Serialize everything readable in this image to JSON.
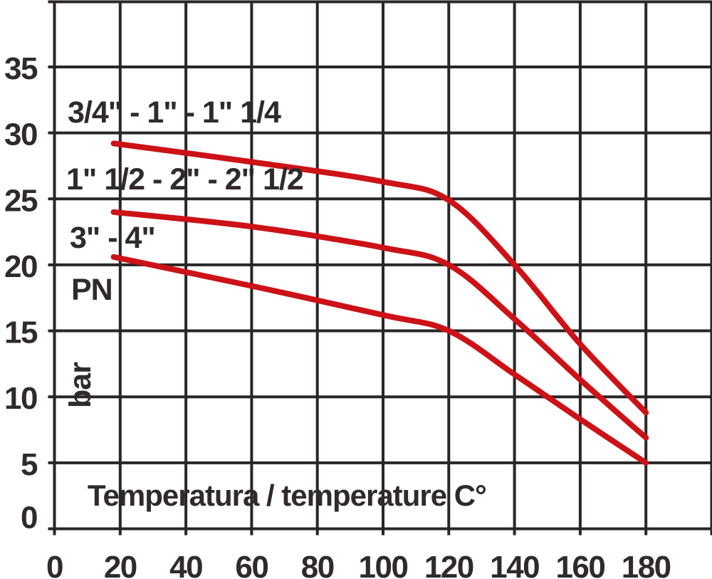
{
  "page": {
    "background": "#ffffff"
  },
  "chart_data": {
    "type": "line",
    "title": "",
    "xlabel": "Temperatura / temperature C°",
    "ylabel": "PN",
    "ylabel_unit": "bar",
    "xlim": [
      0,
      200
    ],
    "ylim": [
      0,
      40
    ],
    "x_ticks": [
      0,
      20,
      40,
      60,
      80,
      100,
      120,
      140,
      160,
      180
    ],
    "y_ticks": [
      0,
      5,
      10,
      15,
      20,
      25,
      30,
      35
    ],
    "grid": true,
    "legend_position": "labels-inside-plot",
    "colors": {
      "curve": "#cc1217",
      "grid": "#2a2526",
      "text": "#302a2b",
      "background": "#ffffff"
    },
    "series": [
      {
        "name": "3/4\" - 1\" - 1\" 1/4",
        "points": [
          [
            18,
            29.2
          ],
          [
            60,
            27.8
          ],
          [
            100,
            26.3
          ],
          [
            120,
            24.9
          ],
          [
            140,
            20.0
          ],
          [
            160,
            14.0
          ],
          [
            180,
            8.8
          ]
        ]
      },
      {
        "name": "1\" 1/2 - 2\" - 2\" 1/2",
        "points": [
          [
            18,
            24.0
          ],
          [
            60,
            22.9
          ],
          [
            100,
            21.3
          ],
          [
            120,
            20.0
          ],
          [
            140,
            15.9
          ],
          [
            160,
            11.3
          ],
          [
            180,
            6.9
          ]
        ]
      },
      {
        "name": "3\" - 4\"",
        "points": [
          [
            18,
            20.6
          ],
          [
            60,
            18.4
          ],
          [
            100,
            16.2
          ],
          [
            120,
            15.0
          ],
          [
            140,
            11.7
          ],
          [
            160,
            8.3
          ],
          [
            180,
            5.0
          ]
        ]
      }
    ]
  }
}
